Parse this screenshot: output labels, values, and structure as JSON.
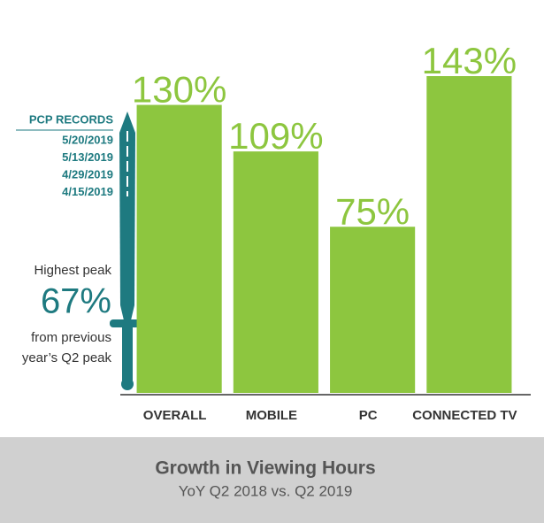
{
  "chart_data": {
    "type": "bar",
    "title": "Growth in Viewing Hours",
    "subtitle": "YoY Q2 2018 vs. Q2 2019",
    "categories": [
      "OVERALL",
      "MOBILE",
      "PC",
      "CONNECTED TV"
    ],
    "values": [
      130,
      109,
      75,
      143
    ],
    "value_labels": [
      "130%",
      "109%",
      "75%",
      "143%"
    ],
    "color": "#8dc63f"
  },
  "sidebar": {
    "heading": "PCP RECORDS",
    "dates": [
      "5/20/2019",
      "5/13/2019",
      "4/29/2019",
      "4/15/2019"
    ],
    "note_top": "Highest peak",
    "peak": "67%",
    "note_bottom": [
      "from previous",
      "year’s Q2 peak"
    ]
  }
}
